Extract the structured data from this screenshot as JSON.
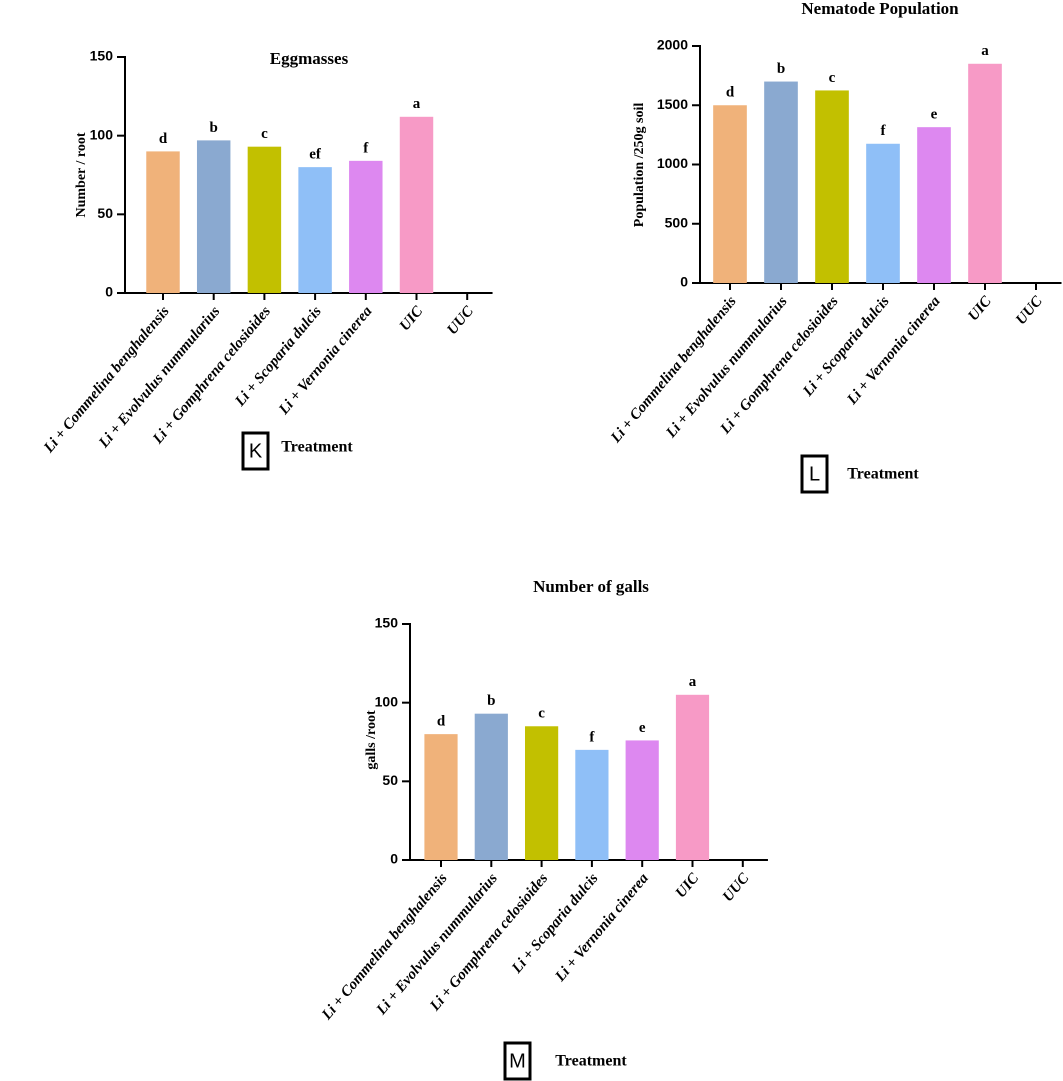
{
  "chart_data": [
    {
      "type": "bar",
      "title": "Eggmasses",
      "y_label": "Number / root",
      "x_label": "Treatment",
      "panel_label": "K",
      "categories": [
        "Li + Commelina benghalensis",
        "Li + Evolvulus nummularius",
        "Li + Gomphrena celosioides",
        "Li + Scoparia dulcis",
        "Li + Vernonia cinerea",
        "UIC",
        "UUC"
      ],
      "values": [
        90,
        97,
        93,
        80,
        84,
        112,
        0
      ],
      "annotations": [
        "d",
        "b",
        "c",
        "ef",
        "f",
        "a",
        null
      ],
      "colors": [
        "#f0b27a",
        "#8aa9d0",
        "#c2c000",
        "#8fbff7",
        "#dd88f0",
        "#f79ac6",
        null
      ],
      "ylim": [
        0,
        150
      ],
      "yticks": [
        0,
        50,
        100,
        150
      ]
    },
    {
      "type": "bar",
      "title": "Nematode Population",
      "y_label": "Population /250g soil",
      "x_label": "Treatment",
      "panel_label": "L",
      "categories": [
        "Li + Commelina benghalensis",
        "Li + Evolvulus nummularius",
        "Li + Gomphrena celosioides",
        "Li + Scoparia dulcis",
        "Li + Vernonia cinerea",
        "UIC",
        "UUC"
      ],
      "values": [
        1500,
        1700,
        1625,
        1175,
        1315,
        1850,
        0
      ],
      "annotations": [
        "d",
        "b",
        "c",
        "f",
        "e",
        "a",
        null
      ],
      "colors": [
        "#f0b27a",
        "#8aa9d0",
        "#c2c000",
        "#8fbff7",
        "#dd88f0",
        "#f79ac6",
        null
      ],
      "ylim": [
        0,
        2000
      ],
      "yticks": [
        0,
        500,
        1000,
        1500,
        2000
      ]
    },
    {
      "type": "bar",
      "title": "Number of galls",
      "y_label": "galls /root",
      "x_label": "Treatment",
      "panel_label": "M",
      "categories": [
        "Li + Commelina benghalensis",
        "Li + Evolvulus nummularius",
        "Li + Gomphrena celosioides",
        "Li + Scoparia dulcis",
        "Li + Vernonia cinerea",
        "UIC",
        "UUC"
      ],
      "values": [
        80,
        93,
        85,
        70,
        76,
        105,
        0
      ],
      "annotations": [
        "d",
        "b",
        "c",
        "f",
        "e",
        "a",
        null
      ],
      "colors": [
        "#f0b27a",
        "#8aa9d0",
        "#c2c000",
        "#8fbff7",
        "#dd88f0",
        "#f79ac6",
        null
      ],
      "ylim": [
        0,
        150
      ],
      "yticks": [
        0,
        50,
        100,
        150
      ]
    }
  ]
}
